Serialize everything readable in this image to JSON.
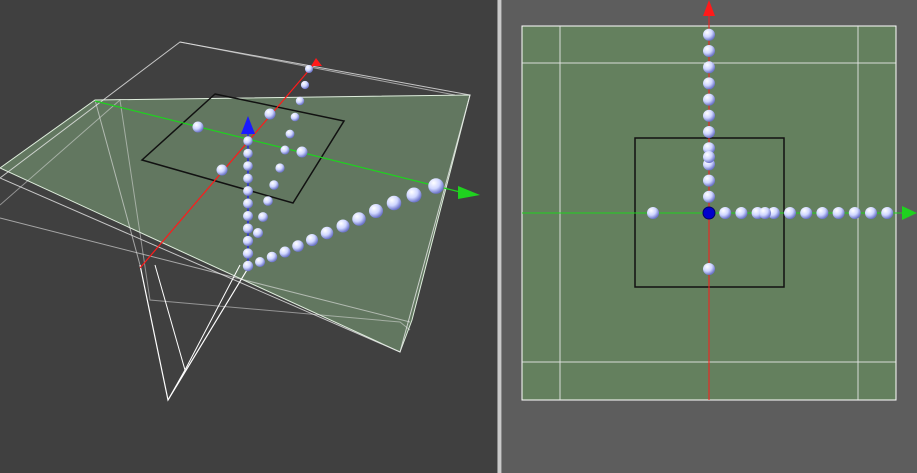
{
  "app": {
    "views": [
      "perspective",
      "top"
    ]
  },
  "colors": {
    "viewport_bg_perspective": "#404040",
    "viewport_bg_top": "#5d5d5d",
    "plane_fill": "#7ea47a",
    "axis_x": "#ff1a1a",
    "axis_y": "#1fd21f",
    "axis_z": "#1a1aff",
    "sphere": "#dfe3ff",
    "selected_sphere": "#0000cc",
    "wireframe": "#ffffff",
    "region": "#111111"
  },
  "icons": {
    "sphere": "sphere-point-icon",
    "axis_arrow": "axis-arrow-icon"
  },
  "top_view": {
    "points_positive_y_count": 11,
    "points_positive_x_count": 11
  }
}
